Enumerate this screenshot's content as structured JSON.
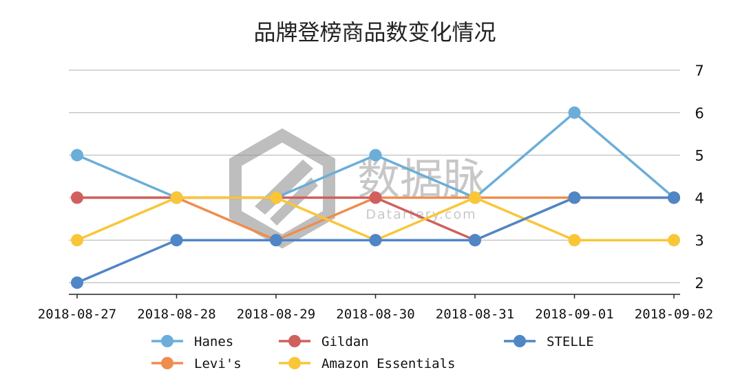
{
  "chart_data": {
    "type": "line",
    "title": "品牌登榜商品数变化情况",
    "x": [
      "2018-08-27",
      "2018-08-28",
      "2018-08-29",
      "2018-08-30",
      "2018-08-31",
      "2018-09-01",
      "2018-09-02"
    ],
    "ylim": [
      2,
      7
    ],
    "yticks": [
      2,
      3,
      4,
      5,
      6,
      7
    ],
    "y_axis_side": "right",
    "grid": true,
    "legend_position": "bottom",
    "series": [
      {
        "name": "Hanes",
        "color": "#6aaed9",
        "values": [
          5,
          4,
          4,
          5,
          4,
          6,
          4
        ]
      },
      {
        "name": "Levi's",
        "color": "#ee8d4e",
        "values": [
          4,
          4,
          3,
          4,
          4,
          4,
          4
        ]
      },
      {
        "name": "Gildan",
        "color": "#d0605e",
        "values": [
          4,
          4,
          4,
          4,
          3,
          4,
          4
        ]
      },
      {
        "name": "Amazon Essentials",
        "color": "#f9c637",
        "values": [
          3,
          4,
          4,
          3,
          4,
          3,
          3
        ]
      },
      {
        "name": "STELLE",
        "color": "#4f86c6",
        "values": [
          2,
          3,
          3,
          3,
          3,
          4,
          4
        ]
      }
    ]
  },
  "watermark": {
    "cn": "数据脉",
    "en": "Datartery.com"
  }
}
